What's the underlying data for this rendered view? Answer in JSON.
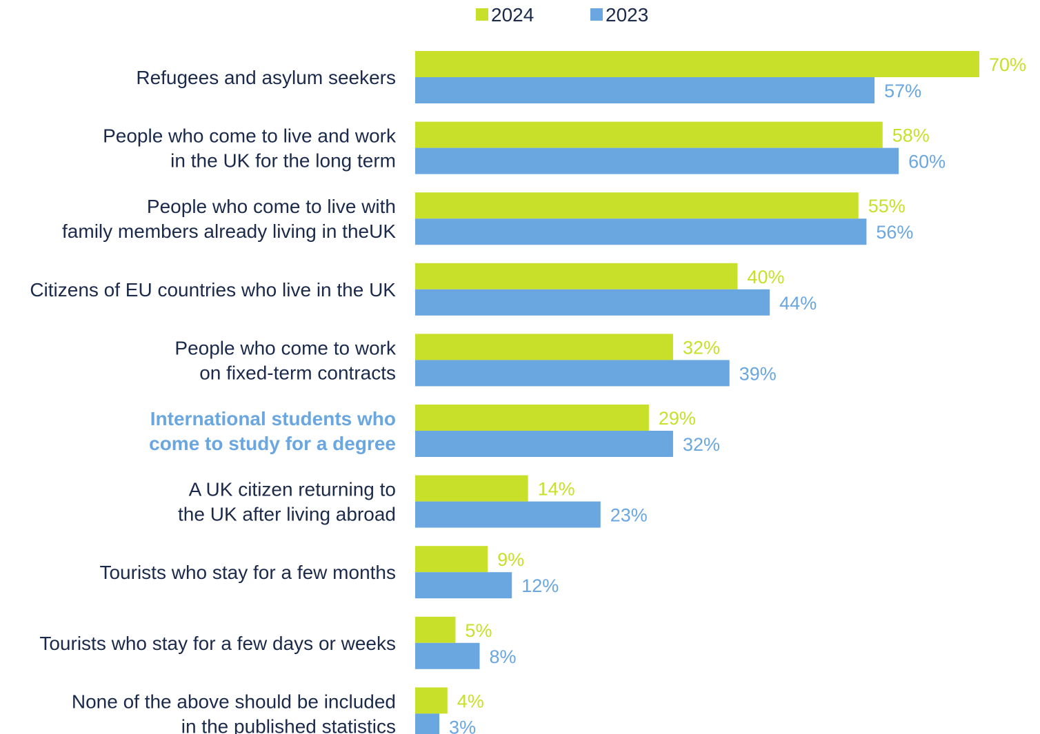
{
  "chart_data": {
    "type": "bar",
    "orientation": "horizontal",
    "categories": [
      [
        "Refugees and asylum seekers"
      ],
      [
        "People who come to live and work",
        "in the UK for the long term"
      ],
      [
        "People who come to live with",
        "family members already living in theUK"
      ],
      [
        "Citizens of EU countries who live in the UK"
      ],
      [
        "People who come to work",
        "on fixed-term contracts"
      ],
      [
        "International students who",
        "come to study for a degree"
      ],
      [
        "A UK citizen returning to",
        "the UK after living abroad"
      ],
      [
        "Tourists who stay for a few months"
      ],
      [
        "Tourists who stay for a few days or weeks"
      ],
      [
        "None of the above should be included",
        "in the published statistics"
      ]
    ],
    "highlight_category_index": 5,
    "series": [
      {
        "name": "2024",
        "color": "#c8e02a",
        "values": [
          70,
          58,
          55,
          40,
          32,
          29,
          14,
          9,
          5,
          4
        ]
      },
      {
        "name": "2023",
        "color": "#6aa6e0",
        "values": [
          57,
          60,
          56,
          44,
          39,
          32,
          23,
          12,
          8,
          3
        ]
      }
    ],
    "value_suffix": "%",
    "xlim": [
      0,
      70
    ],
    "legend_position": "top-center",
    "grid": false,
    "title": "",
    "xlabel": "",
    "ylabel": ""
  }
}
